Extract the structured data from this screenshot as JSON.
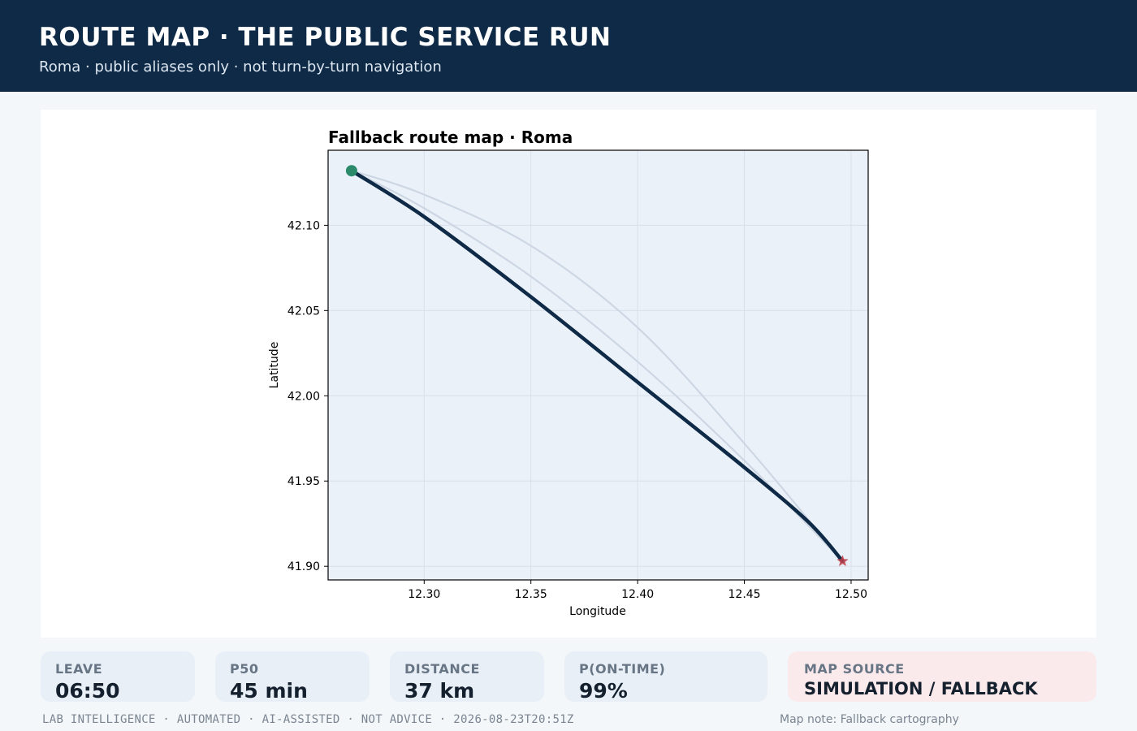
{
  "header": {
    "title": "ROUTE MAP · THE PUBLIC SERVICE RUN",
    "subtitle": "Roma · public aliases only · not turn-by-turn navigation"
  },
  "chart_data": {
    "type": "line",
    "title": "Fallback route map · Roma",
    "xlabel": "Longitude",
    "ylabel": "Latitude",
    "xlim": [
      12.255,
      12.508
    ],
    "ylim": [
      41.892,
      42.144
    ],
    "x_ticks": [
      "12.30",
      "12.35",
      "12.40",
      "12.45",
      "12.50"
    ],
    "y_ticks": [
      "41.90",
      "41.95",
      "42.00",
      "42.05",
      "42.10"
    ],
    "grid": true,
    "colors": {
      "background": "#eaf1f9",
      "primary_route": "#0f2a47",
      "alternate_route": "#cdd7e3",
      "origin_marker": "#2a8a6a",
      "destination_marker": "#c0404a"
    },
    "series": [
      {
        "role": "alternate",
        "x": [
          12.266,
          12.3,
          12.35,
          12.4,
          12.45,
          12.496
        ],
        "y": [
          42.132,
          42.118,
          42.088,
          42.04,
          41.972,
          41.903
        ]
      },
      {
        "role": "alternate",
        "x": [
          12.266,
          12.3,
          12.35,
          12.4,
          12.45,
          12.496
        ],
        "y": [
          42.132,
          42.11,
          42.07,
          42.02,
          41.962,
          41.903
        ]
      },
      {
        "role": "primary",
        "x": [
          12.266,
          12.3,
          12.35,
          12.4,
          12.45,
          12.48,
          12.496
        ],
        "y": [
          42.132,
          42.105,
          42.058,
          42.008,
          41.958,
          41.926,
          41.903
        ]
      }
    ],
    "origin": {
      "x": 12.266,
      "y": 42.132
    },
    "destination": {
      "x": 12.496,
      "y": 41.903
    }
  },
  "stats": [
    {
      "label": "LEAVE",
      "value": "06:50"
    },
    {
      "label": "P50",
      "value": "45 min"
    },
    {
      "label": "DISTANCE",
      "value": "37 km"
    },
    {
      "label": "P(ON-TIME)",
      "value": "99%"
    }
  ],
  "map_source": {
    "label": "MAP SOURCE",
    "value": "SIMULATION / FALLBACK"
  },
  "footer": {
    "left": "LAB INTELLIGENCE · AUTOMATED · AI-ASSISTED · NOT ADVICE · 2026-08-23T20:51Z",
    "right": "Map note: Fallback cartography"
  }
}
